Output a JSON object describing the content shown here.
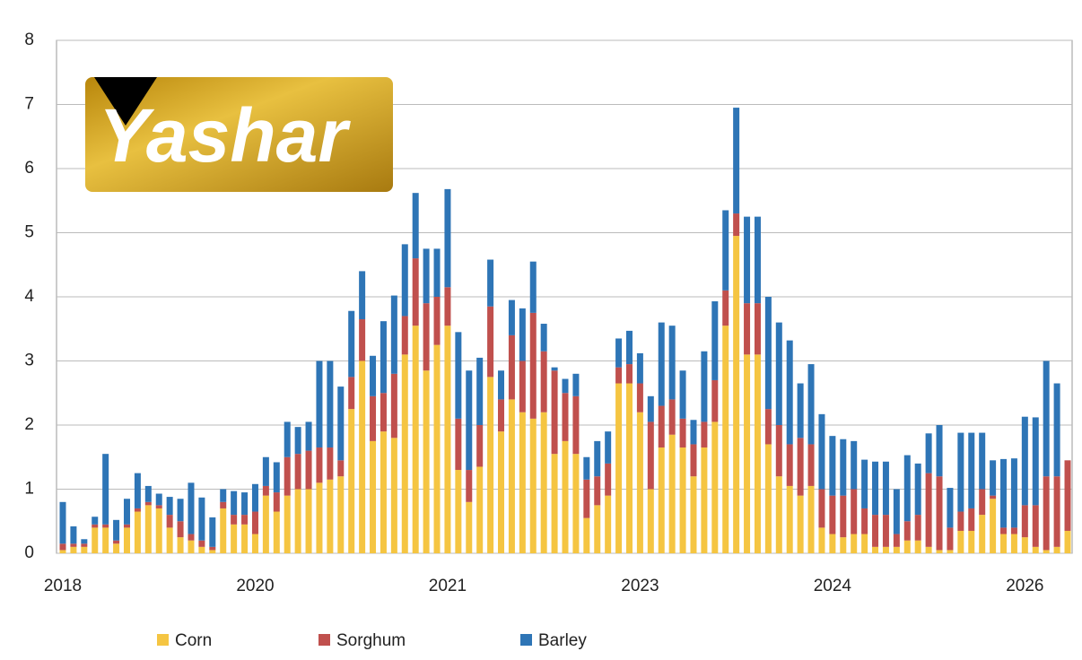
{
  "logo": "Yashar",
  "chart_data": {
    "type": "stacked_bar",
    "categories": [
      "2018",
      null,
      null,
      null,
      null,
      null,
      null,
      null,
      null,
      null,
      null,
      null,
      null,
      null,
      null,
      null,
      null,
      null,
      "2020",
      null,
      null,
      null,
      null,
      null,
      null,
      null,
      null,
      null,
      null,
      null,
      null,
      null,
      null,
      null,
      null,
      null,
      "2021",
      null,
      null,
      null,
      null,
      null,
      null,
      null,
      null,
      null,
      null,
      null,
      null,
      null,
      null,
      null,
      null,
      null,
      "2023",
      null,
      null,
      null,
      null,
      null,
      null,
      null,
      null,
      null,
      null,
      null,
      null,
      null,
      null,
      null,
      null,
      null,
      "2024",
      null,
      null,
      null,
      null,
      null,
      null,
      null,
      null,
      null,
      null,
      null,
      null,
      null,
      null,
      null,
      null,
      null,
      "2026",
      null,
      null,
      null,
      null
    ],
    "series": [
      {
        "name": "Corn",
        "color": "#f5c542",
        "values": [
          0.05,
          0.1,
          0.1,
          0.4,
          0.4,
          0.15,
          0.4,
          0.65,
          0.75,
          0.7,
          0.4,
          0.25,
          0.2,
          0.1,
          0.05,
          0.7,
          0.45,
          0.45,
          0.3,
          0.9,
          0.65,
          0.9,
          1.0,
          1.0,
          1.1,
          1.15,
          1.2,
          2.25,
          3.0,
          1.75,
          1.9,
          1.8,
          3.1,
          3.55,
          2.85,
          3.25,
          3.55,
          1.3,
          0.8,
          1.35,
          2.75,
          1.9,
          2.4,
          2.2,
          2.1,
          2.2,
          1.55,
          1.75,
          1.55,
          0.55,
          0.75,
          0.9,
          2.65,
          2.65,
          2.2,
          1.0,
          1.65,
          1.85,
          1.65,
          1.2,
          1.65,
          2.05,
          3.55,
          4.95,
          3.1,
          3.1,
          1.7,
          1.2,
          1.05,
          0.9,
          1.05,
          0.4,
          0.3,
          0.25,
          0.3,
          0.3,
          0.1,
          0.1,
          0.1,
          0.2,
          0.2,
          0.1,
          0.05,
          0.05,
          0.35,
          0.35,
          0.6,
          0.85,
          0.3,
          0.3,
          0.25,
          0.1,
          0.05,
          0.1,
          0.35
        ]
      },
      {
        "name": "Sorghum",
        "color": "#c0504d",
        "values": [
          0.1,
          0.05,
          0.05,
          0.05,
          0.05,
          0.05,
          0.05,
          0.05,
          0.05,
          0.05,
          0.2,
          0.25,
          0.1,
          0.1,
          0.05,
          0.1,
          0.15,
          0.15,
          0.35,
          0.15,
          0.3,
          0.6,
          0.55,
          0.6,
          0.55,
          0.5,
          0.25,
          0.5,
          0.65,
          0.7,
          0.6,
          1.0,
          0.6,
          1.05,
          1.05,
          0.75,
          0.6,
          0.8,
          0.5,
          0.65,
          1.1,
          0.5,
          1.0,
          0.8,
          1.65,
          0.95,
          1.3,
          0.75,
          0.9,
          0.6,
          0.45,
          0.5,
          0.25,
          0.3,
          0.45,
          1.05,
          0.65,
          0.55,
          0.45,
          0.5,
          0.4,
          0.65,
          0.55,
          0.35,
          0.8,
          0.8,
          0.55,
          0.8,
          0.65,
          0.9,
          0.65,
          0.6,
          0.6,
          0.65,
          0.7,
          0.4,
          0.5,
          0.5,
          0.2,
          0.3,
          0.4,
          1.15,
          1.15,
          0.35,
          0.3,
          0.35,
          0.4,
          0.05,
          0.1,
          0.1,
          0.5,
          0.65,
          1.15,
          1.1,
          1.1
        ]
      },
      {
        "name": "Barley",
        "color": "#2e75b6",
        "values": [
          0.65,
          0.27,
          0.07,
          0.12,
          1.1,
          0.32,
          0.4,
          0.55,
          0.25,
          0.18,
          0.28,
          0.35,
          0.8,
          0.67,
          0.46,
          0.2,
          0.37,
          0.35,
          0.43,
          0.45,
          0.47,
          0.55,
          0.42,
          0.45,
          1.35,
          1.35,
          1.15,
          1.03,
          0.75,
          0.63,
          1.12,
          1.22,
          1.12,
          1.02,
          0.85,
          0.75,
          1.53,
          1.35,
          1.55,
          1.05,
          0.73,
          0.45,
          0.55,
          0.82,
          0.8,
          0.43,
          0.05,
          0.22,
          0.35,
          0.35,
          0.55,
          0.5,
          0.45,
          0.52,
          0.47,
          0.4,
          1.3,
          1.15,
          0.75,
          0.38,
          1.1,
          1.23,
          1.25,
          1.65,
          1.35,
          1.35,
          1.75,
          1.6,
          1.62,
          0.85,
          1.25,
          1.17,
          0.93,
          0.88,
          0.75,
          0.76,
          0.83,
          0.83,
          0.7,
          1.03,
          0.8,
          0.62,
          0.8,
          0.62,
          1.23,
          1.18,
          0.88,
          0.55,
          1.07,
          1.08,
          1.38,
          1.37,
          1.8,
          1.45,
          0
        ]
      }
    ],
    "ylim": [
      0,
      8
    ],
    "yticks": [
      0,
      1,
      2,
      3,
      4,
      5,
      6,
      7,
      8
    ],
    "grid": true,
    "legend": "bottom"
  }
}
